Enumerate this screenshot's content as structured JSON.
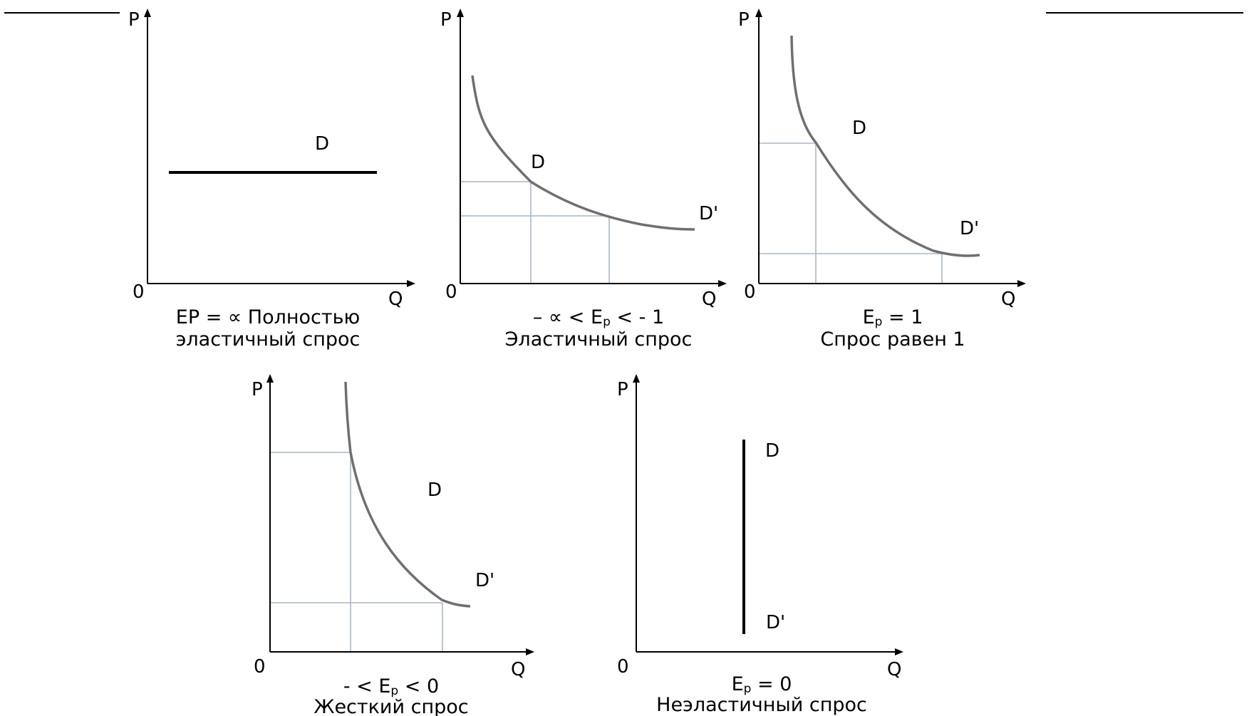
{
  "figure": {
    "panels": [
      {
        "id": "perfectly-elastic",
        "axes": {
          "y": "P",
          "x": "Q",
          "origin": "0"
        },
        "curve_labels": {
          "start": "D",
          "end": ""
        },
        "caption": [
          {
            "parts": [
              {
                "t": "EP = ∝ Полностью"
              }
            ]
          },
          {
            "parts": [
              {
                "t": "эластичный спрос"
              }
            ]
          }
        ]
      },
      {
        "id": "elastic",
        "axes": {
          "y": "P",
          "x": "Q",
          "origin": "0"
        },
        "curve_labels": {
          "start": "D",
          "end": "D'"
        },
        "caption": [
          {
            "parts": [
              {
                "t": "– ∝  < E"
              },
              {
                "t": "p",
                "sub": true
              },
              {
                "t": " < - 1"
              }
            ]
          },
          {
            "parts": [
              {
                "t": "Эластичный спрос"
              }
            ]
          }
        ]
      },
      {
        "id": "unit-elastic",
        "axes": {
          "y": "P",
          "x": "Q",
          "origin": "0"
        },
        "curve_labels": {
          "start": "D",
          "end": "D'"
        },
        "caption": [
          {
            "parts": [
              {
                "t": "E"
              },
              {
                "t": "p",
                "sub": true
              },
              {
                "t": " = 1"
              }
            ]
          },
          {
            "parts": [
              {
                "t": "Спрос равен 1"
              }
            ]
          }
        ]
      },
      {
        "id": "inelastic",
        "axes": {
          "y": "P",
          "x": "Q",
          "origin": "0"
        },
        "curve_labels": {
          "start": "D",
          "end": "D'"
        },
        "caption": [
          {
            "parts": [
              {
                "t": "- < E"
              },
              {
                "t": "p",
                "sub": true
              },
              {
                "t": " < 0"
              }
            ]
          },
          {
            "parts": [
              {
                "t": "Жесткий спрос"
              }
            ]
          }
        ]
      },
      {
        "id": "perfectly-inelastic",
        "axes": {
          "y": "P",
          "x": "Q",
          "origin": "0"
        },
        "curve_labels": {
          "start": "D",
          "end": "D'"
        },
        "caption": [
          {
            "parts": [
              {
                "t": "E"
              },
              {
                "t": "p",
                "sub": true
              },
              {
                "t": " = 0"
              }
            ]
          },
          {
            "parts": [
              {
                "t": "Неэластичный спрос"
              }
            ]
          }
        ]
      }
    ]
  },
  "colors": {
    "curve": "#6f6f73",
    "guide": "#a9b7c6",
    "ink": "#000000",
    "background": "#ffffff"
  }
}
